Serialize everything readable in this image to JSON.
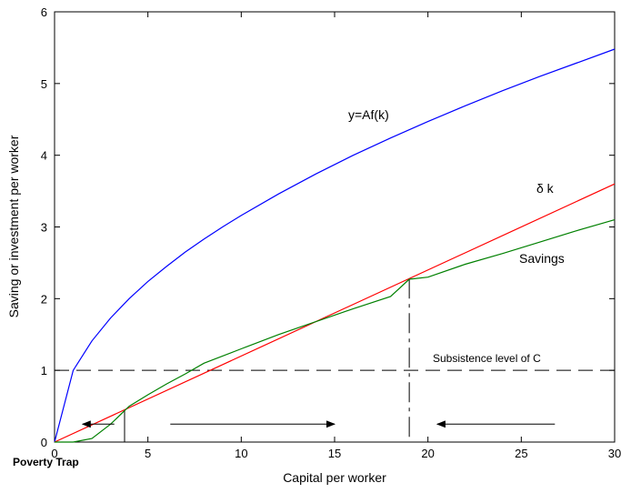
{
  "chart_data": {
    "type": "line",
    "title": "",
    "xlabel": "Capital per worker",
    "ylabel": "Saving or investment per worker",
    "xlim": [
      0,
      30
    ],
    "ylim": [
      0,
      6
    ],
    "xticks": [
      0,
      5,
      10,
      15,
      20,
      25,
      30
    ],
    "yticks": [
      0,
      1,
      2,
      3,
      4,
      5,
      6
    ],
    "grid": false,
    "series": [
      {
        "name": "y=Af(k)",
        "color": "#0000ff",
        "x": [
          0,
          1,
          2,
          3,
          4,
          5,
          6,
          7,
          8,
          9,
          10,
          12,
          14,
          16,
          18,
          20,
          22,
          24,
          26,
          28,
          30
        ],
        "y": [
          0,
          1.0,
          1.41,
          1.73,
          2.0,
          2.24,
          2.45,
          2.65,
          2.83,
          3.0,
          3.16,
          3.46,
          3.74,
          4.0,
          4.24,
          4.47,
          4.69,
          4.9,
          5.1,
          5.29,
          5.48
        ]
      },
      {
        "name": "δ k",
        "color": "#ff0000",
        "x": [
          0,
          30
        ],
        "y": [
          0,
          3.6
        ]
      },
      {
        "name": "Savings",
        "color": "#008000",
        "x": [
          0,
          1,
          2,
          3,
          4,
          5,
          6,
          7,
          8,
          10,
          12,
          14,
          16,
          18,
          19,
          20,
          22,
          24,
          26,
          28,
          30
        ],
        "y": [
          0,
          0.0,
          0.05,
          0.25,
          0.5,
          0.66,
          0.81,
          0.95,
          1.1,
          1.3,
          1.5,
          1.68,
          1.86,
          2.03,
          2.27,
          2.3,
          2.48,
          2.63,
          2.79,
          2.95,
          3.1
        ]
      }
    ],
    "annotations": {
      "af_label": "y=Af(k)",
      "dk_label": "δ k",
      "savings_label": "Savings",
      "subsistence_label": "Subsistence level of C",
      "poverty_trap_label": "Poverty Trap"
    },
    "reference_lines": {
      "subsistence_y": 1,
      "low_equilibrium_x": 3.75,
      "low_equilibrium_y": 0.45,
      "high_equilibrium_x": 19,
      "high_equilibrium_y": 2.28
    },
    "arrows": [
      {
        "from_x": 3.2,
        "to_x": 1.5,
        "y": 0.25
      },
      {
        "from_x": 6.2,
        "to_x": 15,
        "y": 0.25
      },
      {
        "from_x": 26.8,
        "to_x": 20.5,
        "y": 0.25
      }
    ]
  }
}
